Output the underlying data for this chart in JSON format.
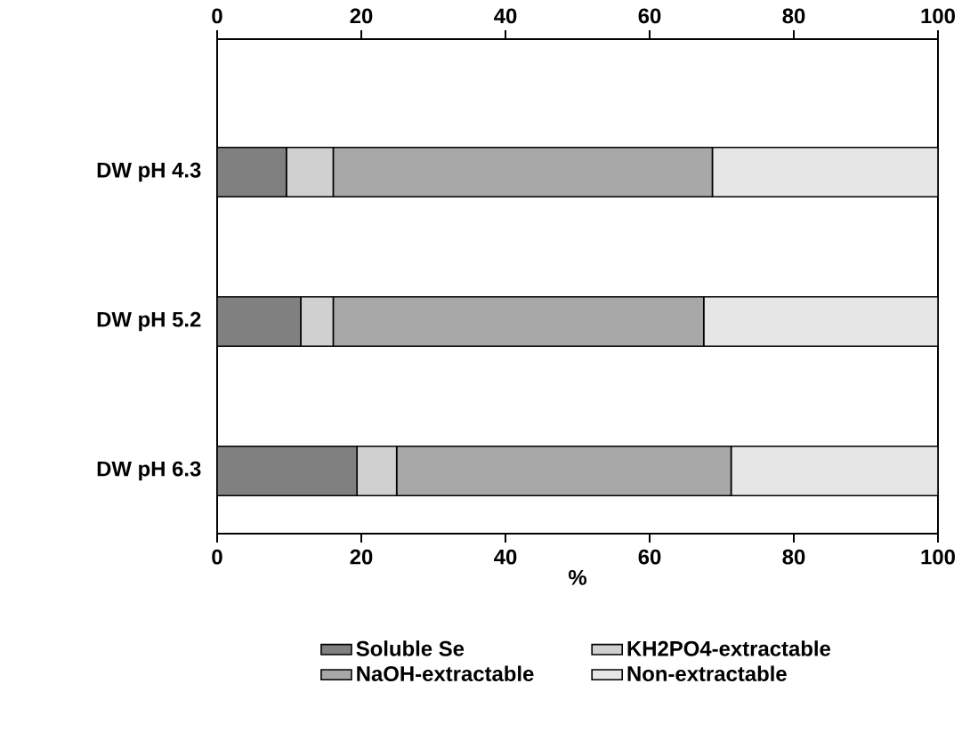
{
  "chart_data": {
    "type": "bar",
    "orientation": "horizontal",
    "stacked": true,
    "categories": [
      "DW pH 4.3",
      "DW pH 5.2",
      "DW pH 6.3"
    ],
    "series": [
      {
        "name": "Soluble Se",
        "color": "#808080",
        "values": [
          9.6,
          11.6,
          19.4
        ]
      },
      {
        "name": "KH2PO4-extractable",
        "color": "#d0d0d0",
        "values": [
          6.5,
          4.5,
          5.5
        ]
      },
      {
        "name": "NaOH-extractable",
        "color": "#a8a8a8",
        "values": [
          52.6,
          51.4,
          46.4
        ]
      },
      {
        "name": "Non-extractable",
        "color": "#e6e6e6",
        "values": [
          31.3,
          32.5,
          28.7
        ]
      }
    ],
    "xlabel": "%",
    "xlim": [
      0,
      100
    ],
    "xticks": [
      0,
      20,
      40,
      60,
      80,
      100
    ],
    "x2lim": [
      0,
      100
    ],
    "x2ticks": [
      0,
      20,
      40,
      60,
      80,
      100
    ],
    "legend": "bottom"
  }
}
